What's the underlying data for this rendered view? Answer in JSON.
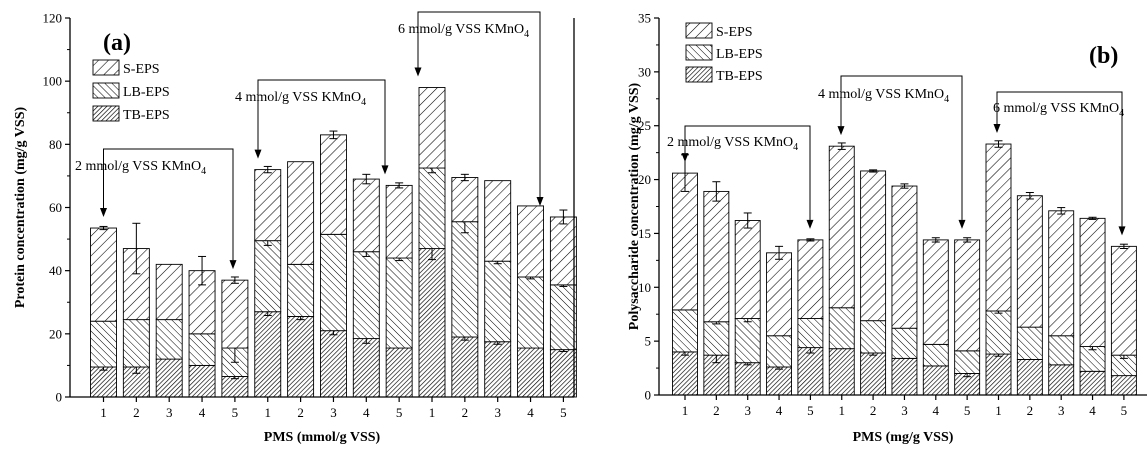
{
  "chart_data": [
    {
      "type": "bar",
      "stacked": true,
      "panel_label": "(a)",
      "xlabel": "PMS (mmol/g VSS)",
      "ylabel": "Protein concentration (mg/g VSS)",
      "ylim": [
        0,
        120
      ],
      "yticks": [
        0,
        20,
        40,
        60,
        80,
        100,
        120
      ],
      "categories": [
        "1",
        "2",
        "3",
        "4",
        "5",
        "1",
        "2",
        "3",
        "4",
        "5",
        "1",
        "2",
        "3",
        "4",
        "5"
      ],
      "series": [
        {
          "name": "TB-EPS",
          "values": [
            9.5,
            9.5,
            12,
            10,
            6.5,
            27,
            25.5,
            21,
            18.5,
            15.5,
            47,
            19,
            17.5,
            15.5,
            15
          ],
          "errors": [
            1,
            2,
            0,
            0,
            0.7,
            1.2,
            1,
            1.3,
            1.5,
            0,
            3.5,
            1,
            0.8,
            0,
            0.6
          ]
        },
        {
          "name": "LB-EPS",
          "values": [
            14.5,
            15,
            12.5,
            10,
            9,
            22.5,
            16.5,
            30.5,
            27.5,
            28.5,
            25.5,
            36.5,
            25.5,
            22.5,
            20.5
          ],
          "errors": [
            0,
            0,
            0,
            0,
            4.5,
            1.5,
            0,
            0,
            1.5,
            0.8,
            1.5,
            3.5,
            0.8,
            0.6,
            0.5
          ]
        },
        {
          "name": "S-EPS",
          "values": [
            29.5,
            22.5,
            17.5,
            20,
            21.5,
            22.5,
            32.5,
            31.5,
            23,
            23,
            25.5,
            14,
            25.5,
            22.5,
            21.5
          ],
          "errors": [
            0.5,
            8,
            0,
            4.5,
            1,
            1,
            0,
            1.2,
            1.5,
            0.8,
            0,
            1,
            0,
            0,
            2.2
          ]
        }
      ],
      "legend": [
        "S-EPS",
        "LB-EPS",
        "TB-EPS"
      ],
      "legend_position": "top-left",
      "annotations": [
        {
          "text": "2 mmol/g VSS KMnO",
          "sub": "4",
          "group": 1
        },
        {
          "text": "4 mmol/g VSS KMnO",
          "sub": "4",
          "group": 2
        },
        {
          "text": "6 mmol/g VSS KMnO",
          "sub": "4",
          "group": 3
        }
      ]
    },
    {
      "type": "bar",
      "stacked": true,
      "panel_label": "(b)",
      "xlabel": "PMS (mg/g VSS)",
      "ylabel": "Polysaccharide concentration (mg/g VSS)",
      "ylim": [
        0,
        35
      ],
      "yticks": [
        0,
        5,
        10,
        15,
        20,
        25,
        30,
        35
      ],
      "categories": [
        "1",
        "2",
        "3",
        "4",
        "5",
        "1",
        "2",
        "3",
        "4",
        "5",
        "1",
        "2",
        "3",
        "4",
        "5"
      ],
      "series": [
        {
          "name": "TB-EPS",
          "values": [
            4,
            3.7,
            3,
            2.6,
            4.4,
            4.3,
            3.9,
            3.4,
            2.7,
            2,
            3.8,
            3.3,
            2.8,
            2.2,
            1.8
          ],
          "errors": [
            0.3,
            0.7,
            0.2,
            0.2,
            0.5,
            0,
            0.2,
            0,
            0,
            0.3,
            0.2,
            0,
            0,
            0,
            0
          ]
        },
        {
          "name": "LB-EPS",
          "values": [
            3.9,
            3.1,
            4.1,
            2.9,
            2.7,
            3.8,
            3,
            2.8,
            2,
            2.1,
            4,
            3,
            2.7,
            2.3,
            1.9
          ],
          "errors": [
            0,
            0.2,
            0.3,
            0,
            0,
            0,
            0,
            0,
            0,
            0,
            0.2,
            0,
            0,
            0.3,
            0.3
          ]
        },
        {
          "name": "S-EPS",
          "values": [
            12.7,
            12.1,
            9.1,
            7.7,
            7.3,
            15,
            13.9,
            13.2,
            9.7,
            10.3,
            15.5,
            12.2,
            11.6,
            11.9,
            10.1
          ],
          "errors": [
            1.7,
            0.9,
            0.7,
            0.6,
            0.1,
            0.3,
            0.1,
            0.2,
            0.2,
            0.2,
            0.3,
            0.3,
            0.3,
            0.1,
            0.2
          ]
        }
      ],
      "legend": [
        "S-EPS",
        "LB-EPS",
        "TB-EPS"
      ],
      "legend_position": "top-left",
      "annotations": [
        {
          "text": "2 mmol/g VSS KMnO",
          "sub": "4",
          "group": 1
        },
        {
          "text": "4 mmol/g VSS KMnO",
          "sub": "4",
          "group": 2
        },
        {
          "text": "6 mmol/g VSS KMnO",
          "sub": "4",
          "group": 3
        }
      ]
    }
  ]
}
